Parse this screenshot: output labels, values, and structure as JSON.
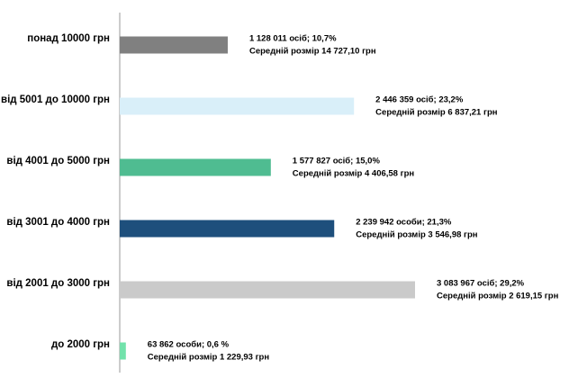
{
  "chart_data": {
    "type": "hbar",
    "categories": [
      "понад 10000 грн",
      "від 5001 до 10000 грн",
      "від 4001 до 5000 грн",
      "від 3001 до 4000 грн",
      "від 2001 до 3000 грн",
      "до 2000 грн"
    ],
    "values": [
      1128011,
      2446359,
      1577827,
      2239942,
      3083967,
      63862
    ],
    "value_labels": [
      "1 128 011 осіб;  10,7%",
      "2 446 359 осіб; 23,2%",
      "1 577 827 осіб; 15,0%",
      "2 239 942 особи; 21,3%",
      "3 083 967 осіб; 29,2%",
      "63 862 особи; 0,6 %"
    ],
    "average_labels": [
      "Середній розмір 14 727,10 грн",
      "Середній розмір 6 837,21 грн",
      "Середній розмір 4 406,58 грн",
      "Середній розмір 3 546,98 грн",
      "Середній розмір 2 619,15 грн",
      "Середній розмір 1 229,93 грн"
    ],
    "colors": [
      "#808080",
      "#d9eff9",
      "#4fbc91",
      "#1e4f7c",
      "#cacaca",
      "#72e2ab"
    ]
  }
}
